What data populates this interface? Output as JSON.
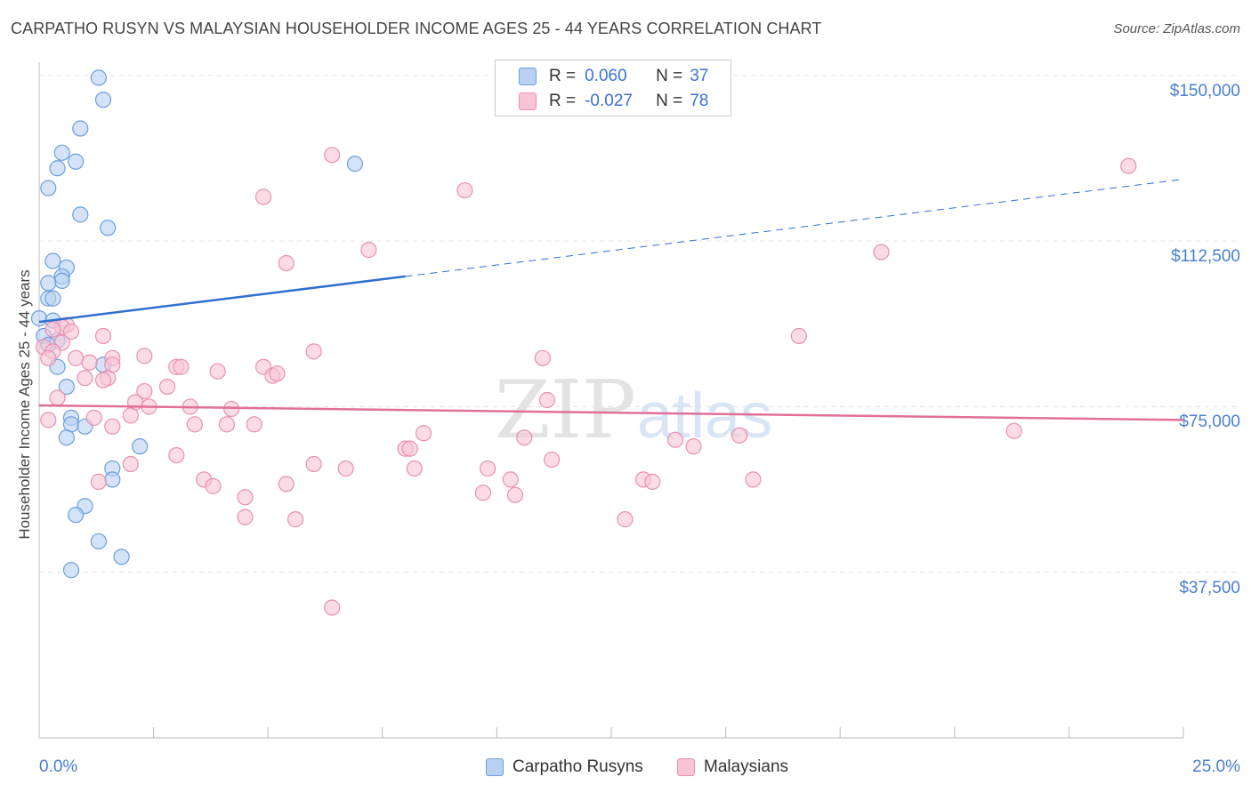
{
  "title": "CARPATHO RUSYN VS MALAYSIAN HOUSEHOLDER INCOME AGES 25 - 44 YEARS CORRELATION CHART",
  "source": "Source: ZipAtlas.com",
  "watermark": {
    "zip": "ZIP",
    "atlas": "atlas"
  },
  "colors": {
    "blue_fill": "#b8d0f2",
    "blue_stroke": "#6c9ee0",
    "blue_line": "#2f6fd0",
    "pink_fill": "#f8c4d4",
    "pink_stroke": "#e890b0",
    "pink_line": "#e07098",
    "axis_text": "#4a7fd0",
    "grid": "#e2e2e2"
  },
  "legend": {
    "rows": [
      {
        "r_label": "R =",
        "r_value": "0.060",
        "n_label": "N =",
        "n_value": "37"
      },
      {
        "r_label": "R =",
        "r_value": "-0.027",
        "n_label": "N =",
        "n_value": "78"
      }
    ]
  },
  "bottom_legend": {
    "series1": "Carpatho Rusyns",
    "series2": "Malaysians"
  },
  "chart_data": {
    "type": "scatter",
    "title": "CARPATHO RUSYN VS MALAYSIAN HOUSEHOLDER INCOME AGES 25 - 44 YEARS CORRELATION CHART",
    "ylabel": "Householder Income Ages 25 - 44 years",
    "xlabel": "",
    "xlim": [
      0,
      25
    ],
    "ylim": [
      0,
      153000
    ],
    "y_ticks": [
      {
        "value": 37500,
        "label": "$37,500"
      },
      {
        "value": 75000,
        "label": "$75,000"
      },
      {
        "value": 112500,
        "label": "$112,500"
      },
      {
        "value": 150000,
        "label": "$150,000"
      }
    ],
    "x_tick_labels": {
      "min": "0.0%",
      "max": "25.0%"
    },
    "x_minor_ticks": [
      0,
      2.5,
      5,
      7.5,
      10,
      12.5,
      15,
      17.5,
      20,
      22.5,
      25
    ],
    "series": [
      {
        "name": "Carpatho Rusyns",
        "color": "blue",
        "trend": {
          "x0": 0,
          "y0": 94200,
          "x1": 8.0,
          "y1": 104500,
          "x_dash_end": 25,
          "y_dash_end": 126500
        },
        "points": [
          [
            1.3,
            149500
          ],
          [
            1.4,
            144500
          ],
          [
            0.9,
            138000
          ],
          [
            0.5,
            132500
          ],
          [
            0.8,
            130500
          ],
          [
            0.4,
            129000
          ],
          [
            6.9,
            130000
          ],
          [
            0.2,
            124500
          ],
          [
            0.9,
            118500
          ],
          [
            1.5,
            115500
          ],
          [
            0.3,
            108000
          ],
          [
            0.6,
            106500
          ],
          [
            0.5,
            104500
          ],
          [
            0.5,
            103500
          ],
          [
            0.2,
            103000
          ],
          [
            0.2,
            99500
          ],
          [
            0.3,
            99500
          ],
          [
            0.0,
            95000
          ],
          [
            0.3,
            94500
          ],
          [
            0.1,
            91000
          ],
          [
            0.4,
            90000
          ],
          [
            0.2,
            89000
          ],
          [
            1.4,
            84500
          ],
          [
            0.4,
            84000
          ],
          [
            0.6,
            79500
          ],
          [
            0.7,
            72500
          ],
          [
            0.7,
            71000
          ],
          [
            1.0,
            70500
          ],
          [
            0.6,
            68000
          ],
          [
            2.2,
            66000
          ],
          [
            1.6,
            61000
          ],
          [
            1.6,
            58500
          ],
          [
            1.0,
            52500
          ],
          [
            0.8,
            50500
          ],
          [
            1.3,
            44500
          ],
          [
            1.8,
            41000
          ],
          [
            0.7,
            38000
          ]
        ]
      },
      {
        "name": "Malaysians",
        "color": "pink",
        "trend": {
          "x0": 0,
          "y0": 75300,
          "x1": 25,
          "y1": 72000
        },
        "points": [
          [
            6.4,
            132000
          ],
          [
            9.3,
            124000
          ],
          [
            4.9,
            122500
          ],
          [
            23.8,
            129500
          ],
          [
            7.2,
            110500
          ],
          [
            5.4,
            107500
          ],
          [
            18.4,
            110000
          ],
          [
            0.6,
            93500
          ],
          [
            0.5,
            93000
          ],
          [
            0.3,
            92500
          ],
          [
            0.7,
            92000
          ],
          [
            1.4,
            91000
          ],
          [
            16.6,
            91000
          ],
          [
            0.5,
            89500
          ],
          [
            0.1,
            88500
          ],
          [
            0.3,
            87500
          ],
          [
            0.2,
            86000
          ],
          [
            6.0,
            87500
          ],
          [
            2.3,
            86500
          ],
          [
            1.6,
            86000
          ],
          [
            11.0,
            86000
          ],
          [
            0.8,
            86000
          ],
          [
            1.1,
            85000
          ],
          [
            1.6,
            84500
          ],
          [
            3.0,
            84000
          ],
          [
            3.1,
            84000
          ],
          [
            4.9,
            84000
          ],
          [
            3.9,
            83000
          ],
          [
            5.1,
            82000
          ],
          [
            1.5,
            81500
          ],
          [
            1.0,
            81500
          ],
          [
            1.4,
            81000
          ],
          [
            5.2,
            82500
          ],
          [
            2.8,
            79500
          ],
          [
            2.3,
            78500
          ],
          [
            0.4,
            77000
          ],
          [
            11.1,
            76500
          ],
          [
            2.1,
            76000
          ],
          [
            2.4,
            75000
          ],
          [
            3.3,
            75000
          ],
          [
            4.2,
            74500
          ],
          [
            2.0,
            73000
          ],
          [
            1.2,
            72500
          ],
          [
            0.2,
            72000
          ],
          [
            3.4,
            71000
          ],
          [
            4.1,
            71000
          ],
          [
            4.7,
            71000
          ],
          [
            1.6,
            70500
          ],
          [
            8.4,
            69000
          ],
          [
            10.6,
            68000
          ],
          [
            15.3,
            68500
          ],
          [
            21.3,
            69500
          ],
          [
            8.0,
            65500
          ],
          [
            8.1,
            65500
          ],
          [
            14.3,
            66000
          ],
          [
            13.9,
            67500
          ],
          [
            3.0,
            64000
          ],
          [
            11.2,
            63000
          ],
          [
            2.0,
            62000
          ],
          [
            6.0,
            62000
          ],
          [
            6.7,
            61000
          ],
          [
            8.2,
            61000
          ],
          [
            9.8,
            61000
          ],
          [
            10.3,
            58500
          ],
          [
            13.2,
            58500
          ],
          [
            13.4,
            58000
          ],
          [
            3.6,
            58500
          ],
          [
            1.3,
            58000
          ],
          [
            5.4,
            57500
          ],
          [
            3.8,
            57000
          ],
          [
            4.5,
            54500
          ],
          [
            9.7,
            55500
          ],
          [
            10.4,
            55000
          ],
          [
            4.5,
            50000
          ],
          [
            5.6,
            49500
          ],
          [
            12.8,
            49500
          ],
          [
            15.6,
            58500
          ],
          [
            6.4,
            29500
          ]
        ]
      }
    ]
  }
}
